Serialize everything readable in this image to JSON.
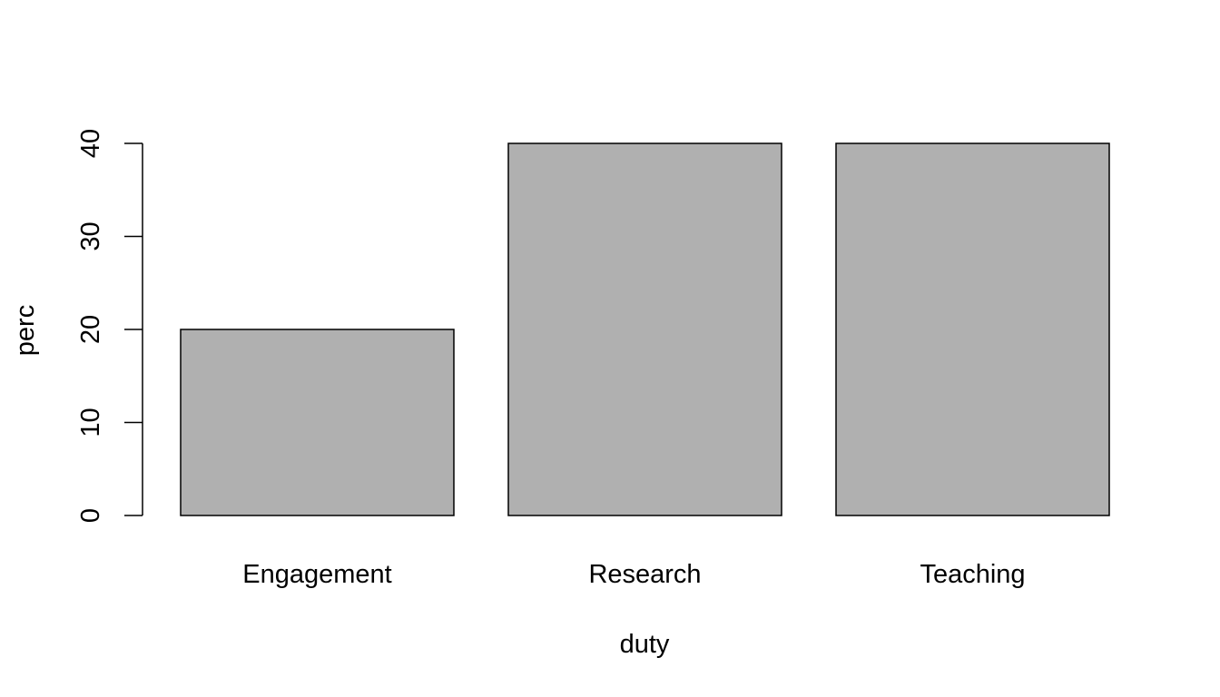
{
  "chart_data": {
    "type": "bar",
    "categories": [
      "Engagement",
      "Research",
      "Teaching"
    ],
    "values": [
      20,
      40,
      40
    ],
    "title": "",
    "xlabel": "duty",
    "ylabel": "perc",
    "ylim": [
      0,
      40
    ],
    "yticks": [
      "0",
      "10",
      "20",
      "30",
      "40"
    ],
    "grid": false,
    "bar_color": "#b0b0b0",
    "border_color": "#000000"
  }
}
